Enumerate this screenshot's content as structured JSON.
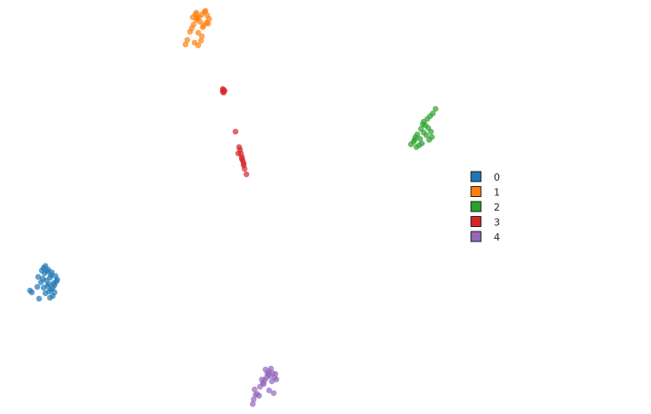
{
  "chart_data": {
    "type": "scatter",
    "title": "",
    "xlabel": "",
    "ylabel": "",
    "xlim": [
      0,
      716
    ],
    "ylim": [
      456,
      0
    ],
    "grid": false,
    "axes_visible": false,
    "legend": {
      "placement": "center-right",
      "entries": [
        {
          "label": "0",
          "color": "#1f77b4"
        },
        {
          "label": "1",
          "color": "#ff7f0e"
        },
        {
          "label": "2",
          "color": "#2ca02c"
        },
        {
          "label": "3",
          "color": "#d62728"
        },
        {
          "label": "4",
          "color": "#9467bd"
        }
      ]
    },
    "series": [
      {
        "label": "0",
        "color": "#1f77b4",
        "x": [
          35,
          33,
          43,
          41,
          45,
          47,
          42,
          50,
          52,
          55,
          58,
          60,
          56,
          54,
          51,
          49,
          48,
          53,
          57,
          61,
          63,
          59,
          55,
          52,
          50,
          46,
          48,
          54,
          58,
          60,
          62,
          56
        ],
        "y": [
          134,
          136,
          127,
          140,
          145,
          149,
          151,
          133,
          141,
          128,
          130,
          134,
          137,
          143,
          147,
          155,
          161,
          159,
          156,
          152,
          148,
          144,
          150,
          157,
          163,
          158,
          139,
          135,
          139,
          142,
          146,
          153
        ]
      },
      {
        "label": "1",
        "color": "#ff7f0e",
        "x": [
          204,
          206,
          214,
          218,
          221,
          209,
          211,
          213,
          216,
          219,
          222,
          225,
          228,
          230,
          227,
          224,
          220,
          217,
          215,
          212,
          226,
          229,
          222,
          218,
          216,
          223
        ],
        "y": [
          407,
          412,
          409,
          406,
          411,
          421,
          425,
          429,
          434,
          437,
          440,
          443,
          439,
          435,
          431,
          428,
          432,
          436,
          440,
          437,
          444,
          430,
          416,
          420,
          442,
          426
        ]
      },
      {
        "label": "2",
        "color": "#2ca02c",
        "x": [
          452,
          455,
          458,
          461,
          464,
          457,
          459,
          462,
          466,
          469,
          472,
          475,
          471,
          468,
          466,
          470,
          473,
          476,
          479,
          463,
          456,
          474,
          465
        ],
        "y": [
          297,
          300,
          294,
          296,
          298,
          305,
          308,
          303,
          310,
          307,
          302,
          305,
          315,
          318,
          322,
          325,
          328,
          331,
          336,
          314,
          302,
          311,
          319
        ]
      },
      {
        "label": "3",
        "color": "#d62728",
        "x": [
          271,
          269,
          268,
          267,
          266,
          265,
          264,
          263,
          262,
          268,
          266,
          259,
          245,
          246,
          247,
          246,
          245
        ],
        "y": [
          264,
          270,
          274,
          279,
          283,
          287,
          291,
          294,
          287,
          276,
          281,
          311,
          355,
          357,
          356,
          354,
          358
        ]
      },
      {
        "label": "4",
        "color": "#9467bd",
        "x": [
          278,
          279,
          281,
          280,
          283,
          286,
          289,
          291,
          293,
          295,
          296,
          298,
          300,
          302,
          304,
          299,
          297,
          294,
          292,
          288,
          285,
          296,
          301,
          303,
          290
        ],
        "y": [
          11,
          16,
          21,
          27,
          22,
          30,
          34,
          37,
          40,
          43,
          47,
          50,
          45,
          40,
          38,
          36,
          42,
          45,
          49,
          38,
          20,
          26,
          23,
          44,
          33
        ]
      }
    ]
  }
}
